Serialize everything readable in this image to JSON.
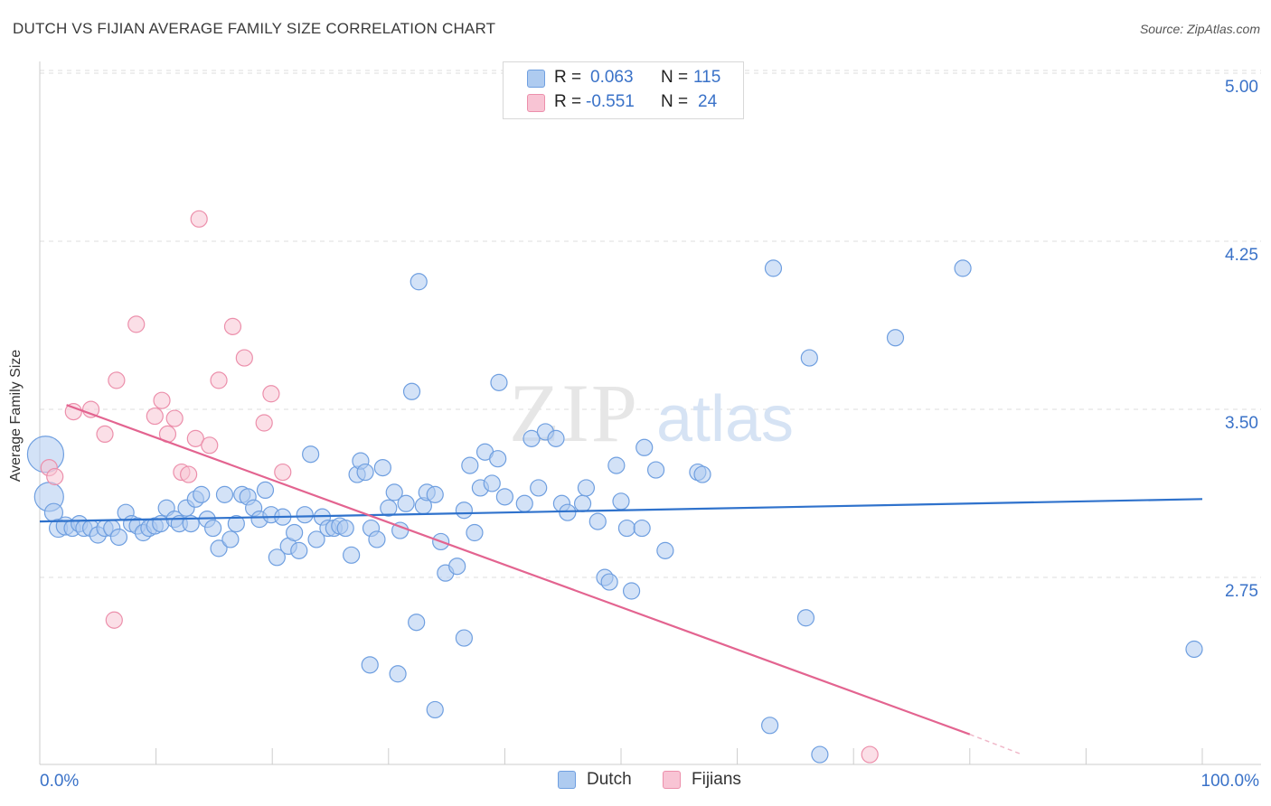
{
  "title": "DUTCH VS FIJIAN AVERAGE FAMILY SIZE CORRELATION CHART",
  "source": "Source: ZipAtlas.com",
  "watermark": {
    "zip": "ZIP",
    "atlas": "atlas"
  },
  "legend": {
    "rows": [
      {
        "r_label": "R =",
        "r_value": "0.063",
        "n_label": "N =",
        "n_value": "115",
        "color": "#aecbf0",
        "stroke": "#6f9fe0"
      },
      {
        "r_label": "R =",
        "r_value": "-0.551",
        "n_label": "N =",
        "n_value": "24",
        "color": "#f8c4d4",
        "stroke": "#ec8fab"
      }
    ]
  },
  "bottom_legend": [
    {
      "label": "Dutch",
      "color": "#aecbf0",
      "stroke": "#6f9fe0"
    },
    {
      "label": "Fijians",
      "color": "#f8c4d4",
      "stroke": "#ec8fab"
    }
  ],
  "chart_data": {
    "type": "scatter",
    "title": "DUTCH VS FIJIAN AVERAGE FAMILY SIZE CORRELATION CHART",
    "xlabel": "",
    "ylabel": "Average Family Size",
    "xlim": [
      0,
      100
    ],
    "ylim": [
      2.0,
      5.08
    ],
    "x_tick_labels": [
      "0.0%",
      "100.0%"
    ],
    "y_ticks": [
      2.75,
      3.5,
      4.25,
      5.0
    ],
    "y_tick_labels": [
      "2.75",
      "3.50",
      "4.25",
      "5.00"
    ],
    "grid": true,
    "legend_position": "top-center",
    "series": [
      {
        "name": "Dutch",
        "color": "#6f9fe0",
        "fill": "#aecbf0",
        "trend": {
          "x": [
            0,
            100
          ],
          "y": [
            3.06,
            3.16
          ],
          "color": "#2f72cc"
        },
        "points": [
          [
            0.5,
            3.36,
            20
          ],
          [
            0.8,
            3.17,
            16
          ],
          [
            1.2,
            3.1,
            10
          ],
          [
            1.6,
            3.03,
            10
          ],
          [
            2.2,
            3.04,
            10
          ],
          [
            2.8,
            3.03,
            9
          ],
          [
            3.4,
            3.05,
            9
          ],
          [
            3.8,
            3.03,
            9
          ],
          [
            4.4,
            3.03,
            9
          ],
          [
            5.0,
            3.0,
            9
          ],
          [
            5.6,
            3.03,
            9
          ],
          [
            6.2,
            3.03,
            9
          ],
          [
            6.8,
            2.99,
            9
          ],
          [
            7.4,
            3.1,
            9
          ],
          [
            7.9,
            3.05,
            9
          ],
          [
            8.4,
            3.04,
            9
          ],
          [
            8.9,
            3.01,
            9
          ],
          [
            9.4,
            3.03,
            9
          ],
          [
            9.9,
            3.04,
            9
          ],
          [
            10.4,
            3.05,
            9
          ],
          [
            10.9,
            3.12,
            9
          ],
          [
            11.6,
            3.07,
            9
          ],
          [
            12.0,
            3.05,
            9
          ],
          [
            12.6,
            3.12,
            9
          ],
          [
            13.0,
            3.05,
            9
          ],
          [
            13.4,
            3.16,
            9
          ],
          [
            13.9,
            3.18,
            9
          ],
          [
            14.4,
            3.07,
            9
          ],
          [
            14.9,
            3.03,
            9
          ],
          [
            15.4,
            2.94,
            9
          ],
          [
            15.9,
            3.18,
            9
          ],
          [
            16.4,
            2.98,
            9
          ],
          [
            16.9,
            3.05,
            9
          ],
          [
            17.4,
            3.18,
            9
          ],
          [
            17.9,
            3.17,
            9
          ],
          [
            18.4,
            3.12,
            9
          ],
          [
            18.9,
            3.07,
            9
          ],
          [
            19.4,
            3.2,
            9
          ],
          [
            19.9,
            3.09,
            9
          ],
          [
            20.4,
            2.9,
            9
          ],
          [
            20.9,
            3.08,
            9
          ],
          [
            21.4,
            2.95,
            9
          ],
          [
            21.9,
            3.01,
            9
          ],
          [
            22.3,
            2.93,
            9
          ],
          [
            22.8,
            3.09,
            9
          ],
          [
            23.3,
            3.36,
            9
          ],
          [
            23.8,
            2.98,
            9
          ],
          [
            24.3,
            3.08,
            9
          ],
          [
            24.8,
            3.03,
            9
          ],
          [
            25.3,
            3.03,
            9
          ],
          [
            25.8,
            3.04,
            9
          ],
          [
            26.3,
            3.03,
            9
          ],
          [
            26.8,
            2.91,
            9
          ],
          [
            27.3,
            3.27,
            9
          ],
          [
            27.6,
            3.33,
            9
          ],
          [
            28.0,
            3.28,
            9
          ],
          [
            28.5,
            3.03,
            9
          ],
          [
            29.0,
            2.98,
            9
          ],
          [
            29.5,
            3.3,
            9
          ],
          [
            30.0,
            3.12,
            9
          ],
          [
            30.5,
            3.19,
            9
          ],
          [
            31.0,
            3.02,
            9
          ],
          [
            31.5,
            3.14,
            9
          ],
          [
            32.0,
            3.64,
            9
          ],
          [
            32.6,
            4.13,
            9
          ],
          [
            33.0,
            3.13,
            9
          ],
          [
            33.3,
            3.19,
            9
          ],
          [
            34.0,
            3.18,
            9
          ],
          [
            34.5,
            2.97,
            9
          ],
          [
            34.9,
            2.83,
            9
          ],
          [
            35.9,
            2.86,
            9
          ],
          [
            36.5,
            3.11,
            9
          ],
          [
            37.0,
            3.31,
            9
          ],
          [
            37.4,
            3.01,
            9
          ],
          [
            37.9,
            3.21,
            9
          ],
          [
            38.3,
            3.37,
            9
          ],
          [
            38.9,
            3.23,
            9
          ],
          [
            39.4,
            3.34,
            9
          ],
          [
            40.0,
            3.17,
            9
          ],
          [
            41.7,
            3.14,
            9
          ],
          [
            42.3,
            3.43,
            9
          ],
          [
            42.9,
            3.21,
            9
          ],
          [
            43.5,
            3.46,
            9
          ],
          [
            44.4,
            3.43,
            9
          ],
          [
            44.9,
            3.14,
            9
          ],
          [
            45.4,
            3.1,
            9
          ],
          [
            46.7,
            3.14,
            9
          ],
          [
            47.0,
            3.21,
            9
          ],
          [
            48.0,
            3.06,
            9
          ],
          [
            48.6,
            2.81,
            9
          ],
          [
            49.0,
            2.79,
            9
          ],
          [
            49.6,
            3.31,
            9
          ],
          [
            50.0,
            3.15,
            9
          ],
          [
            50.5,
            3.03,
            9
          ],
          [
            50.9,
            2.75,
            9
          ],
          [
            52.0,
            3.39,
            9
          ],
          [
            53.0,
            3.29,
            9
          ],
          [
            53.8,
            2.93,
            9
          ],
          [
            56.6,
            3.28,
            9
          ],
          [
            57.0,
            3.27,
            9
          ],
          [
            63.1,
            4.19,
            9
          ],
          [
            66.2,
            3.79,
            9
          ],
          [
            65.9,
            2.63,
            9
          ],
          [
            73.6,
            3.88,
            9
          ],
          [
            79.4,
            4.19,
            9
          ],
          [
            39.5,
            3.68,
            9
          ],
          [
            36.5,
            2.54,
            9
          ],
          [
            28.4,
            2.42,
            9
          ],
          [
            30.8,
            2.38,
            9
          ],
          [
            34.0,
            2.22,
            9
          ],
          [
            32.4,
            2.61,
            9
          ],
          [
            51.8,
            3.03,
            9
          ],
          [
            62.8,
            2.15,
            9
          ],
          [
            67.1,
            2.02,
            9
          ],
          [
            99.3,
            2.49,
            9
          ]
        ]
      },
      {
        "name": "Fijians",
        "color": "#ec8fab",
        "fill": "#f8c4d4",
        "trend": {
          "x": [
            2.3,
            80.0
          ],
          "y": [
            3.58,
            2.11
          ],
          "color": "#e36490"
        },
        "trend_dashed_extension": {
          "x": [
            80.0,
            84.5
          ],
          "y": [
            2.11,
            2.02
          ]
        },
        "points": [
          [
            0.8,
            3.3,
            9
          ],
          [
            1.3,
            3.26,
            9
          ],
          [
            2.9,
            3.55,
            9
          ],
          [
            4.4,
            3.56,
            9
          ],
          [
            5.6,
            3.45,
            9
          ],
          [
            6.6,
            3.69,
            9
          ],
          [
            8.3,
            3.94,
            9
          ],
          [
            9.9,
            3.53,
            9
          ],
          [
            10.5,
            3.6,
            9
          ],
          [
            11.0,
            3.45,
            9
          ],
          [
            11.6,
            3.52,
            9
          ],
          [
            12.2,
            3.28,
            9
          ],
          [
            12.8,
            3.27,
            9
          ],
          [
            13.4,
            3.43,
            9
          ],
          [
            14.6,
            3.4,
            9
          ],
          [
            15.4,
            3.69,
            9
          ],
          [
            16.6,
            3.93,
            9
          ],
          [
            17.6,
            3.79,
            9
          ],
          [
            19.9,
            3.63,
            9
          ],
          [
            19.3,
            3.5,
            9
          ],
          [
            20.9,
            3.28,
            9
          ],
          [
            13.7,
            4.41,
            9
          ],
          [
            6.4,
            2.62,
            9
          ],
          [
            71.4,
            2.02,
            9
          ]
        ]
      }
    ]
  }
}
